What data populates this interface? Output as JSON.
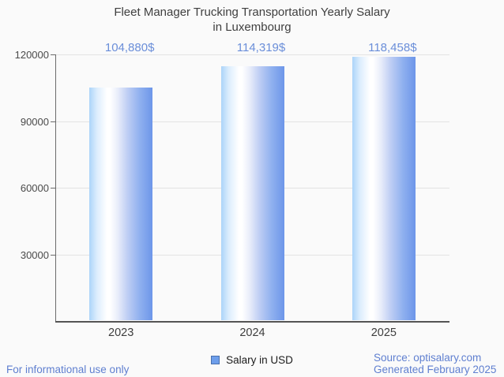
{
  "chart": {
    "title_line1": "Fleet Manager Trucking Transportation Yearly Salary",
    "title_line2": "in Luxembourg"
  },
  "chart_data": {
    "type": "bar",
    "title": "Fleet Manager Trucking Transportation Yearly Salary in Luxembourg",
    "categories": [
      "2023",
      "2024",
      "2025"
    ],
    "values": [
      104880,
      114319,
      118458
    ],
    "value_labels": [
      "104,880$",
      "114,319$",
      "118,458$"
    ],
    "series_name": "Salary in USD",
    "xlabel": "",
    "ylabel": "",
    "ylim": [
      0,
      120000
    ],
    "yticks": [
      30000,
      60000,
      90000,
      120000
    ],
    "grid": true,
    "legend_position": "bottom"
  },
  "legend": {
    "label": "Salary in USD"
  },
  "footer": {
    "disclaimer": "For informational use only",
    "source": "Source: optisalary.com",
    "generated": "Generated February 2025"
  },
  "colors": {
    "background": "#fafafa",
    "title_text": "#3f3f3f",
    "axis_line": "#545454",
    "gridline": "#e3e3e3",
    "value_label_blue": "#6a8ed9",
    "footer_blue": "#5f7fd0",
    "bar_gradient_left": "#abd4f9",
    "bar_gradient_middle": "#ffffff",
    "bar_gradient_right": "#6d96e9",
    "legend_swatch": "#6d9eeb"
  }
}
